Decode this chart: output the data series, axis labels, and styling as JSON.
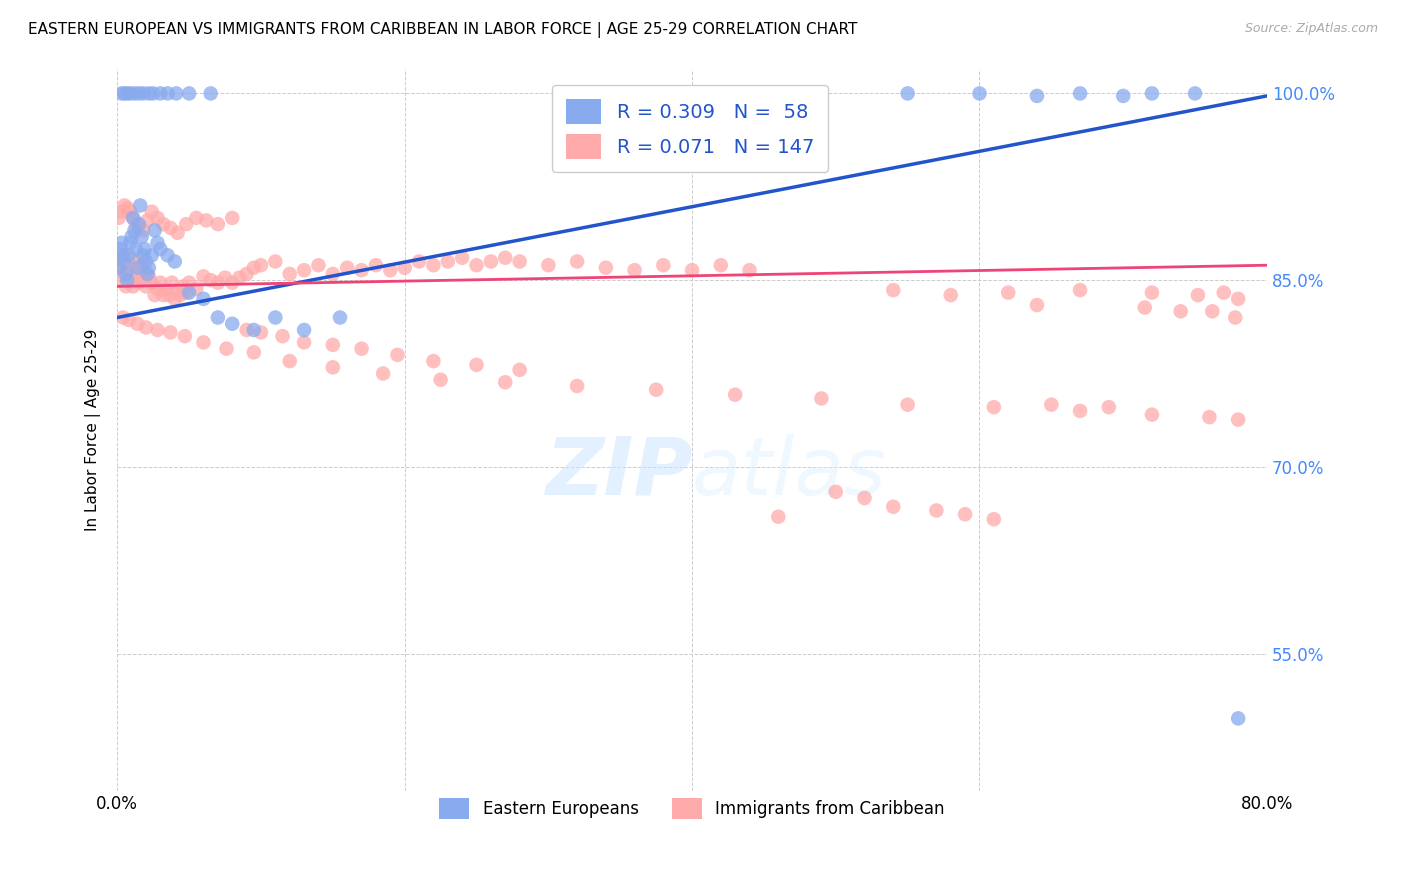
{
  "title": "EASTERN EUROPEAN VS IMMIGRANTS FROM CARIBBEAN IN LABOR FORCE | AGE 25-29 CORRELATION CHART",
  "source": "Source: ZipAtlas.com",
  "ylabel": "In Labor Force | Age 25-29",
  "x_min": 0.0,
  "x_max": 0.8,
  "y_min": 0.44,
  "y_max": 1.02,
  "y_ticks": [
    0.55,
    0.7,
    0.85,
    1.0
  ],
  "y_tick_labels": [
    "55.0%",
    "70.0%",
    "85.0%",
    "100.0%"
  ],
  "grid_color": "#cccccc",
  "background_color": "#ffffff",
  "blue_color": "#88aaee",
  "blue_line": "#2255cc",
  "pink_color": "#ffaaaa",
  "pink_line": "#ee4477",
  "blue_R": 0.309,
  "blue_N": 58,
  "pink_R": 0.071,
  "pink_N": 147,
  "watermark": "ZIPatlas",
  "blue_scatter_x": [
    0.001,
    0.002,
    0.003,
    0.004,
    0.005,
    0.006,
    0.007,
    0.008,
    0.009,
    0.01,
    0.011,
    0.012,
    0.013,
    0.014,
    0.015,
    0.016,
    0.017,
    0.018,
    0.019,
    0.02,
    0.021,
    0.022,
    0.024,
    0.026,
    0.028,
    0.03,
    0.035,
    0.04,
    0.05,
    0.06,
    0.07,
    0.08,
    0.095,
    0.11,
    0.13,
    0.155,
    0.003,
    0.005,
    0.007,
    0.009,
    0.012,
    0.015,
    0.018,
    0.022,
    0.025,
    0.03,
    0.035,
    0.041,
    0.05,
    0.065,
    0.55,
    0.6,
    0.64,
    0.67,
    0.7,
    0.72,
    0.75,
    0.78
  ],
  "blue_scatter_y": [
    0.86,
    0.875,
    0.88,
    0.87,
    0.865,
    0.855,
    0.85,
    0.87,
    0.88,
    0.885,
    0.9,
    0.89,
    0.875,
    0.86,
    0.895,
    0.91,
    0.885,
    0.87,
    0.875,
    0.865,
    0.855,
    0.86,
    0.87,
    0.89,
    0.88,
    0.875,
    0.87,
    0.865,
    0.84,
    0.835,
    0.82,
    0.815,
    0.81,
    0.82,
    0.81,
    0.82,
    1.0,
    1.0,
    1.0,
    1.0,
    1.0,
    1.0,
    1.0,
    1.0,
    1.0,
    1.0,
    1.0,
    1.0,
    1.0,
    1.0,
    1.0,
    1.0,
    0.998,
    1.0,
    0.998,
    1.0,
    1.0,
    0.498
  ],
  "pink_scatter_x": [
    0.001,
    0.002,
    0.003,
    0.004,
    0.005,
    0.006,
    0.007,
    0.008,
    0.009,
    0.01,
    0.011,
    0.012,
    0.013,
    0.014,
    0.015,
    0.016,
    0.017,
    0.018,
    0.02,
    0.022,
    0.024,
    0.026,
    0.028,
    0.03,
    0.032,
    0.034,
    0.036,
    0.038,
    0.04,
    0.042,
    0.044,
    0.046,
    0.048,
    0.05,
    0.055,
    0.06,
    0.065,
    0.07,
    0.075,
    0.08,
    0.085,
    0.09,
    0.095,
    0.1,
    0.11,
    0.12,
    0.13,
    0.14,
    0.15,
    0.16,
    0.17,
    0.18,
    0.19,
    0.2,
    0.21,
    0.22,
    0.23,
    0.24,
    0.25,
    0.26,
    0.27,
    0.28,
    0.3,
    0.32,
    0.34,
    0.36,
    0.38,
    0.4,
    0.42,
    0.44,
    0.001,
    0.003,
    0.005,
    0.007,
    0.009,
    0.011,
    0.013,
    0.015,
    0.018,
    0.021,
    0.024,
    0.028,
    0.032,
    0.037,
    0.042,
    0.048,
    0.055,
    0.062,
    0.07,
    0.08,
    0.09,
    0.1,
    0.115,
    0.13,
    0.15,
    0.17,
    0.195,
    0.22,
    0.25,
    0.28,
    0.004,
    0.008,
    0.014,
    0.02,
    0.028,
    0.037,
    0.047,
    0.06,
    0.076,
    0.095,
    0.12,
    0.15,
    0.185,
    0.225,
    0.27,
    0.32,
    0.375,
    0.43,
    0.49,
    0.55,
    0.61,
    0.67,
    0.72,
    0.76,
    0.78,
    0.54,
    0.58,
    0.62,
    0.67,
    0.72,
    0.752,
    0.77,
    0.78,
    0.65,
    0.69,
    0.64,
    0.715,
    0.74,
    0.762,
    0.778,
    0.5,
    0.52,
    0.46,
    0.54,
    0.57,
    0.59,
    0.61
  ],
  "pink_scatter_y": [
    0.85,
    0.86,
    0.865,
    0.87,
    0.855,
    0.845,
    0.85,
    0.865,
    0.86,
    0.855,
    0.845,
    0.852,
    0.858,
    0.865,
    0.848,
    0.855,
    0.862,
    0.85,
    0.845,
    0.853,
    0.848,
    0.838,
    0.843,
    0.848,
    0.838,
    0.843,
    0.838,
    0.848,
    0.835,
    0.842,
    0.838,
    0.845,
    0.84,
    0.848,
    0.843,
    0.853,
    0.85,
    0.848,
    0.852,
    0.848,
    0.852,
    0.855,
    0.86,
    0.862,
    0.865,
    0.855,
    0.858,
    0.862,
    0.855,
    0.86,
    0.858,
    0.862,
    0.858,
    0.86,
    0.865,
    0.862,
    0.865,
    0.868,
    0.862,
    0.865,
    0.868,
    0.865,
    0.862,
    0.865,
    0.86,
    0.858,
    0.862,
    0.858,
    0.862,
    0.858,
    0.9,
    0.905,
    0.91,
    0.908,
    0.905,
    0.9,
    0.895,
    0.892,
    0.89,
    0.898,
    0.905,
    0.9,
    0.895,
    0.892,
    0.888,
    0.895,
    0.9,
    0.898,
    0.895,
    0.9,
    0.81,
    0.808,
    0.805,
    0.8,
    0.798,
    0.795,
    0.79,
    0.785,
    0.782,
    0.778,
    0.82,
    0.818,
    0.815,
    0.812,
    0.81,
    0.808,
    0.805,
    0.8,
    0.795,
    0.792,
    0.785,
    0.78,
    0.775,
    0.77,
    0.768,
    0.765,
    0.762,
    0.758,
    0.755,
    0.75,
    0.748,
    0.745,
    0.742,
    0.74,
    0.738,
    0.842,
    0.838,
    0.84,
    0.842,
    0.84,
    0.838,
    0.84,
    0.835,
    0.75,
    0.748,
    0.83,
    0.828,
    0.825,
    0.825,
    0.82,
    0.68,
    0.675,
    0.66,
    0.668,
    0.665,
    0.662,
    0.658
  ]
}
